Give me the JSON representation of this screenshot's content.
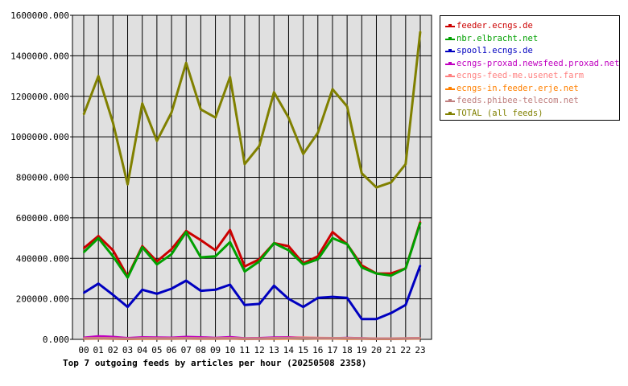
{
  "chart_data": {
    "type": "line",
    "title": "Top 7 outgoing feeds by articles per hour (20250508 2358)",
    "xlabel": "",
    "ylabel": "",
    "categories": [
      "00",
      "01",
      "02",
      "03",
      "04",
      "05",
      "06",
      "07",
      "08",
      "09",
      "10",
      "11",
      "12",
      "13",
      "14",
      "15",
      "16",
      "17",
      "18",
      "19",
      "20",
      "21",
      "22",
      "23"
    ],
    "ylim": [
      0,
      1600000
    ],
    "yticks": [
      "0.000",
      "200000.000",
      "400000.000",
      "600000.000",
      "800000.000",
      "1000000.000",
      "1200000.000",
      "1400000.000",
      "1600000.000"
    ],
    "yticks_values": [
      0,
      200000,
      400000,
      600000,
      800000,
      1000000,
      1200000,
      1400000,
      1600000
    ],
    "grid": true,
    "legend_position": "right",
    "series": [
      {
        "name": "feeder.ecngs.de",
        "color": "#cc0000",
        "values": [
          450000,
          510000,
          440000,
          310000,
          460000,
          385000,
          445000,
          535000,
          490000,
          440000,
          540000,
          360000,
          395000,
          475000,
          460000,
          375000,
          410000,
          530000,
          470000,
          365000,
          325000,
          325000,
          350000,
          580000
        ]
      },
      {
        "name": "nbr.elbracht.net",
        "color": "#00a000",
        "values": [
          430000,
          500000,
          410000,
          305000,
          455000,
          370000,
          420000,
          530000,
          405000,
          410000,
          480000,
          335000,
          385000,
          475000,
          440000,
          370000,
          395000,
          500000,
          470000,
          355000,
          325000,
          315000,
          350000,
          575000
        ]
      },
      {
        "name": "spool1.ecngs.de",
        "color": "#0000c0",
        "values": [
          230000,
          275000,
          220000,
          160000,
          245000,
          225000,
          250000,
          290000,
          240000,
          245000,
          270000,
          170000,
          175000,
          265000,
          200000,
          160000,
          205000,
          210000,
          205000,
          100000,
          100000,
          130000,
          170000,
          365000
        ]
      },
      {
        "name": "ecngs-proxad.newsfeed.proxad.net",
        "color": "#c000c0",
        "values": [
          8000,
          15000,
          12000,
          6000,
          10000,
          9000,
          8000,
          12000,
          10000,
          7000,
          11000,
          5000,
          6000,
          9000,
          10000,
          8000,
          6000,
          5000,
          7000,
          5000,
          3000,
          4000,
          4000,
          5000
        ]
      },
      {
        "name": "ecngs-feed-me.usenet.farm",
        "color": "#ff8080",
        "values": [
          5000,
          6000,
          5000,
          3000,
          5000,
          5000,
          5000,
          6000,
          5000,
          5000,
          6000,
          4000,
          4000,
          6000,
          7000,
          9000,
          7000,
          6000,
          6000,
          5000,
          4000,
          4000,
          5000,
          6000
        ]
      },
      {
        "name": "ecngs-in.feeder.erje.net",
        "color": "#ff8000",
        "values": [
          3000,
          4000,
          3000,
          2000,
          3000,
          3000,
          3000,
          4000,
          3000,
          3000,
          4000,
          2000,
          3000,
          3000,
          4000,
          5000,
          4000,
          4000,
          3000,
          3000,
          2000,
          2000,
          3000,
          4000
        ]
      },
      {
        "name": "feeds.phibee-telecom.net",
        "color": "#c08080",
        "values": [
          4000,
          5000,
          4000,
          3000,
          5000,
          4000,
          4000,
          5000,
          4000,
          4000,
          5000,
          3000,
          3000,
          5000,
          6000,
          6000,
          5000,
          5000,
          5000,
          4000,
          3000,
          3000,
          4000,
          5000
        ]
      },
      {
        "name": "TOTAL (all feeds)",
        "color": "#808000",
        "values": [
          1110000,
          1300000,
          1070000,
          765000,
          1165000,
          980000,
          1120000,
          1365000,
          1135000,
          1095000,
          1295000,
          865000,
          955000,
          1220000,
          1095000,
          915000,
          1020000,
          1235000,
          1150000,
          820000,
          750000,
          775000,
          865000,
          1520000
        ]
      }
    ]
  }
}
